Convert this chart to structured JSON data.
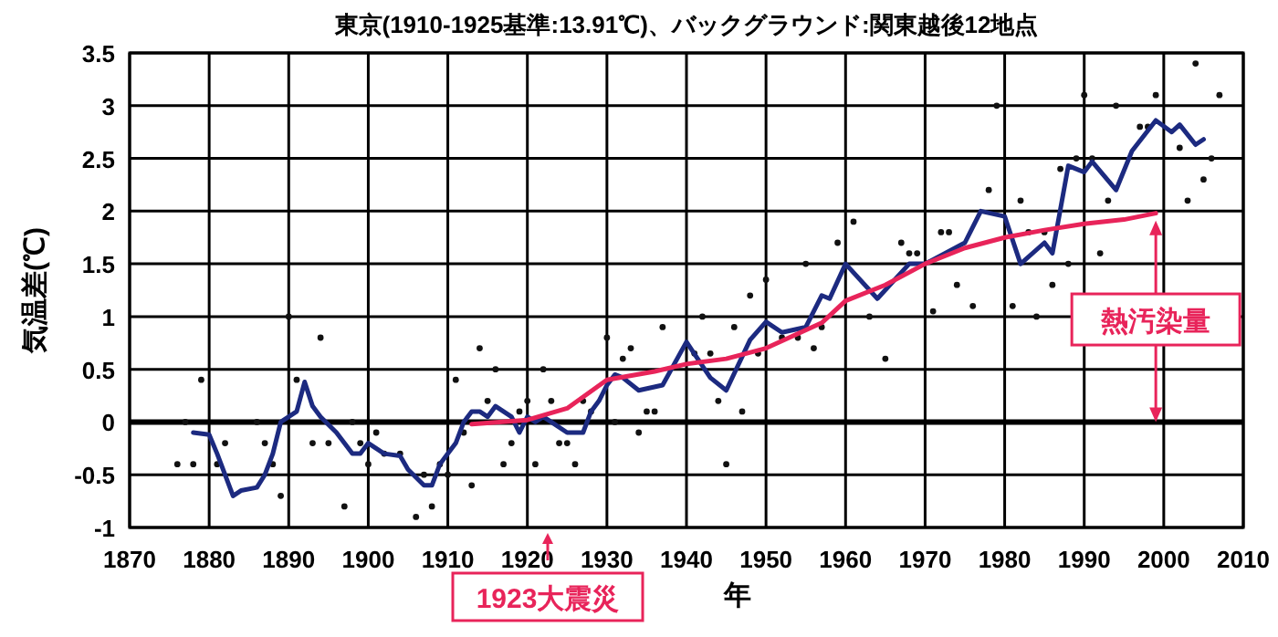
{
  "chart_data": {
    "type": "scatter",
    "title": "東京(1910-1925基準:13.91℃)、バックグラウンド:関東越後12地点",
    "xlabel": "年",
    "ylabel": "気温差(℃)",
    "xlim": [
      1870,
      2010
    ],
    "xticks": [
      1870,
      1880,
      1890,
      1900,
      1910,
      1920,
      1930,
      1940,
      1950,
      1960,
      1970,
      1980,
      1990,
      2000,
      2010
    ],
    "ylim": [
      -1,
      3.5
    ],
    "yticks": [
      -1,
      -0.5,
      0,
      0.5,
      1,
      1.5,
      2,
      2.5,
      3,
      3.5
    ],
    "grid": true,
    "ref_lines": [
      {
        "axis": "y",
        "value": 0,
        "label": null,
        "color": "#000000"
      }
    ],
    "series": [
      {
        "color": "#111111",
        "marker": "circle",
        "x": [
          1876,
          1877,
          1878,
          1879,
          1881,
          1882,
          1886,
          1887,
          1888,
          1889,
          1890,
          1891,
          1893,
          1894,
          1895,
          1897,
          1898,
          1899,
          1900,
          1901,
          1902,
          1904,
          1906,
          1907,
          1908,
          1909,
          1910,
          1911,
          1912,
          1913,
          1914,
          1915,
          1916,
          1917,
          1918,
          1919,
          1920,
          1921,
          1922,
          1923,
          1924,
          1925,
          1926,
          1927,
          1928,
          1930,
          1931,
          1932,
          1933,
          1934,
          1935,
          1936,
          1937,
          1941,
          1942,
          1943,
          1944,
          1945,
          1946,
          1947,
          1948,
          1949,
          1950,
          1952,
          1954,
          1955,
          1956,
          1957,
          1959,
          1961,
          1963,
          1965,
          1967,
          1968,
          1969,
          1971,
          1972,
          1973,
          1974,
          1976,
          1978,
          1979,
          1981,
          1982,
          1983,
          1984,
          1985,
          1986,
          1987,
          1988,
          1989,
          1990,
          1991,
          1992,
          1993,
          1994,
          1997,
          1998,
          1999,
          2002,
          2003,
          2004,
          2005,
          2006,
          2007
        ],
        "values": [
          -0.4,
          0,
          -0.4,
          0.4,
          -0.4,
          -0.2,
          0,
          -0.2,
          -0.4,
          -0.7,
          1.0,
          0.4,
          -0.2,
          0.8,
          -0.2,
          -0.8,
          0,
          -0.2,
          -0.4,
          -0.1,
          -0.3,
          -0.3,
          -0.9,
          -0.5,
          -0.8,
          -0.4,
          -0.5,
          0.4,
          -0.1,
          -0.6,
          0.7,
          0.2,
          0.5,
          -0.4,
          -0.2,
          0.1,
          0.2,
          -0.4,
          0.5,
          0.2,
          -0.2,
          -0.2,
          -0.4,
          0.2,
          0.1,
          0.8,
          0,
          0.6,
          0.7,
          -0.1,
          0.1,
          0.1,
          0.9,
          0.65,
          1.0,
          0.65,
          0.2,
          -0.4,
          0.9,
          0.1,
          1.2,
          0.65,
          1.35,
          0.8,
          0.8,
          1.5,
          0.7,
          0.9,
          1.7,
          1.9,
          1.0,
          0.6,
          1.7,
          1.6,
          1.6,
          1.05,
          1.8,
          1.8,
          1.3,
          1.1,
          2.2,
          3.0,
          1.1,
          2.1,
          1.8,
          1.0,
          1.8,
          1.3,
          2.4,
          1.5,
          2.5,
          3.1,
          2.5,
          1.6,
          2.1,
          3.0,
          2.8,
          2.8,
          3.1,
          2.6,
          2.1,
          3.4,
          2.3,
          2.5,
          3.1
        ]
      },
      {
        "type": "line",
        "color": "#1c2a80",
        "x": [
          1878,
          1880,
          1881,
          1883,
          1884,
          1886,
          1887,
          1888,
          1889,
          1891,
          1892,
          1893,
          1894,
          1896,
          1898,
          1899,
          1900,
          1902,
          1904,
          1905,
          1907,
          1908,
          1909,
          1910,
          1911,
          1912,
          1913,
          1914,
          1915,
          1916,
          1918,
          1919,
          1920,
          1921,
          1922,
          1923,
          1925,
          1927,
          1928,
          1929,
          1930,
          1931,
          1932,
          1934,
          1937,
          1940,
          1943,
          1945,
          1948,
          1950,
          1952,
          1955,
          1957,
          1958,
          1960,
          1964,
          1968,
          1970,
          1975,
          1977,
          1980,
          1982,
          1985,
          1986,
          1988,
          1990,
          1991,
          1994,
          1996,
          1999,
          2001,
          2002,
          2004,
          2005
        ],
        "values": [
          -0.1,
          -0.12,
          -0.3,
          -0.7,
          -0.65,
          -0.62,
          -0.5,
          -0.3,
          0,
          0.1,
          0.38,
          0.15,
          0.05,
          -0.1,
          -0.3,
          -0.3,
          -0.2,
          -0.3,
          -0.32,
          -0.45,
          -0.6,
          -0.6,
          -0.4,
          -0.3,
          -0.2,
          0,
          0.1,
          0.1,
          0.05,
          0.15,
          0.05,
          -0.1,
          0.05,
          0,
          0.05,
          0,
          -0.1,
          -0.1,
          0.1,
          0.2,
          0.35,
          0.45,
          0.42,
          0.3,
          0.35,
          0.76,
          0.42,
          0.3,
          0.78,
          0.95,
          0.85,
          0.9,
          1.2,
          1.17,
          1.5,
          1.17,
          1.5,
          1.5,
          1.7,
          2.0,
          1.95,
          1.5,
          1.7,
          1.6,
          2.43,
          2.37,
          2.47,
          2.2,
          2.57,
          2.86,
          2.75,
          2.82,
          2.63,
          2.68
        ]
      },
      {
        "type": "line",
        "color": "#e8245a",
        "x": [
          1913,
          1920,
          1925,
          1930,
          1936,
          1940,
          1945,
          1950,
          1957,
          1960,
          1965,
          1970,
          1975,
          1980,
          1985,
          1990,
          1995,
          1999
        ],
        "values": [
          -0.02,
          0.02,
          0.13,
          0.4,
          0.48,
          0.55,
          0.6,
          0.7,
          0.94,
          1.15,
          1.3,
          1.5,
          1.65,
          1.75,
          1.82,
          1.88,
          1.92,
          1.98
        ]
      }
    ],
    "annotations": [
      "1923大震災",
      "熱汚染量"
    ]
  }
}
